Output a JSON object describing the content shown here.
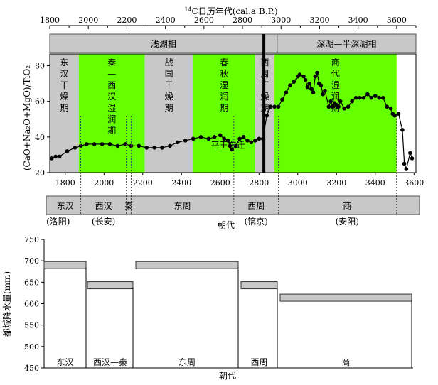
{
  "chart_data": [
    {
      "type": "line",
      "top_axis": {
        "label_superscript": "14",
        "label": "C日历年代(cal.a B.P.)",
        "ticks": [
          1800,
          2000,
          2200,
          2400,
          2600,
          2800,
          3000,
          3200,
          3400,
          3600
        ],
        "range": [
          1800,
          3700
        ]
      },
      "facies": [
        {
          "label": "浅湖相",
          "start": 1800,
          "end": 2980
        },
        {
          "label": "深湖—半深湖相",
          "start": 2980,
          "end": 3700
        }
      ],
      "ylabel": "(CaO+Na₂O+MgO)/TiO₂",
      "ylim": [
        20,
        85
      ],
      "yticks": [
        20,
        40,
        60,
        80
      ],
      "xlim": [
        1720,
        3610
      ],
      "xticks": [
        1800,
        2000,
        2200,
        2400,
        2600,
        2800,
        3000,
        3200,
        3400,
        3600
      ],
      "periods": [
        {
          "label": "东汉干燥期",
          "start": 1720,
          "end": 1870,
          "color": "#c8c8c8"
        },
        {
          "label": "秦—西汉湿润期",
          "start": 1870,
          "end": 2210,
          "color": "#66ff00"
        },
        {
          "label": "战国干燥期",
          "start": 2210,
          "end": 2460,
          "color": "#c8c8c8"
        },
        {
          "label": "春秋湿润期",
          "start": 2460,
          "end": 2780,
          "color": "#66ff00"
        },
        {
          "label": "西周干燥期",
          "start": 2780,
          "end": 2880,
          "color": "#c8c8c8"
        },
        {
          "label": "商代湿润期",
          "start": 2880,
          "end": 3510,
          "color": "#66ff00"
        }
      ],
      "annotation": "平王东迁",
      "boundary_x": 2825,
      "series": [
        {
          "x": [
            1730,
            1750,
            1770,
            1810,
            1850,
            1880,
            1910,
            1950,
            1990,
            2030,
            2070,
            2110,
            2140,
            2180,
            2220,
            2260,
            2300,
            2340,
            2380,
            2420,
            2460,
            2500,
            2540,
            2570,
            2600,
            2620,
            2640,
            2650,
            2660,
            2680,
            2700,
            2720,
            2740,
            2760,
            2780,
            2800,
            2820,
            2840,
            2860,
            2880,
            2900,
            2920,
            2940,
            2960,
            2980,
            3000,
            3010,
            3030,
            3040,
            3050,
            3060,
            3070,
            3080,
            3090,
            3100,
            3110,
            3120,
            3130,
            3140,
            3160,
            3170,
            3180,
            3190,
            3200,
            3210,
            3220,
            3240,
            3260,
            3280,
            3300,
            3320,
            3340,
            3360,
            3380,
            3400,
            3420,
            3440,
            3460,
            3480,
            3490,
            3500,
            3520,
            3540,
            3550,
            3560,
            3580,
            3590
          ],
          "y": [
            28,
            29,
            29,
            32,
            34,
            35,
            36,
            36,
            36,
            36,
            35,
            36,
            35,
            35,
            34,
            34,
            34,
            35,
            37,
            38,
            39,
            40,
            39,
            40,
            41,
            39,
            38,
            35,
            33,
            35,
            39,
            40,
            38,
            37,
            38,
            39,
            39,
            52,
            57,
            57,
            57,
            61,
            65,
            69,
            71,
            74,
            75,
            74,
            72,
            68,
            70,
            67,
            65,
            74,
            76,
            70,
            69,
            64,
            66,
            57,
            60,
            57,
            59,
            58,
            57,
            60,
            56,
            57,
            60,
            62,
            62,
            62,
            64,
            62,
            63,
            62,
            62,
            57,
            56,
            53,
            52,
            53,
            44,
            25,
            22,
            31,
            28
          ]
        }
      ],
      "dynasty_bar": [
        {
          "label": "东汉",
          "place": "(洛阳)"
        },
        {
          "label": "西汉",
          "place": "(长安)"
        },
        {
          "label": "秦",
          "place": ""
        },
        {
          "label": "东周",
          "place": ""
        },
        {
          "label": "西周",
          "place": "(镐京)"
        },
        {
          "label": "商",
          "place": "(安阳)"
        }
      ],
      "xlabel": "朝代"
    },
    {
      "type": "bar",
      "categories": [
        "东汉",
        "西汉—秦",
        "东周",
        "西周",
        "商"
      ],
      "values": [
        685,
        638,
        685,
        638,
        609
      ],
      "ylabel": "都城降水量(mm)",
      "ylim": [
        450,
        750
      ],
      "yticks": [
        450,
        500,
        550,
        600,
        650,
        700,
        750
      ],
      "xlabel": "朝代"
    }
  ]
}
